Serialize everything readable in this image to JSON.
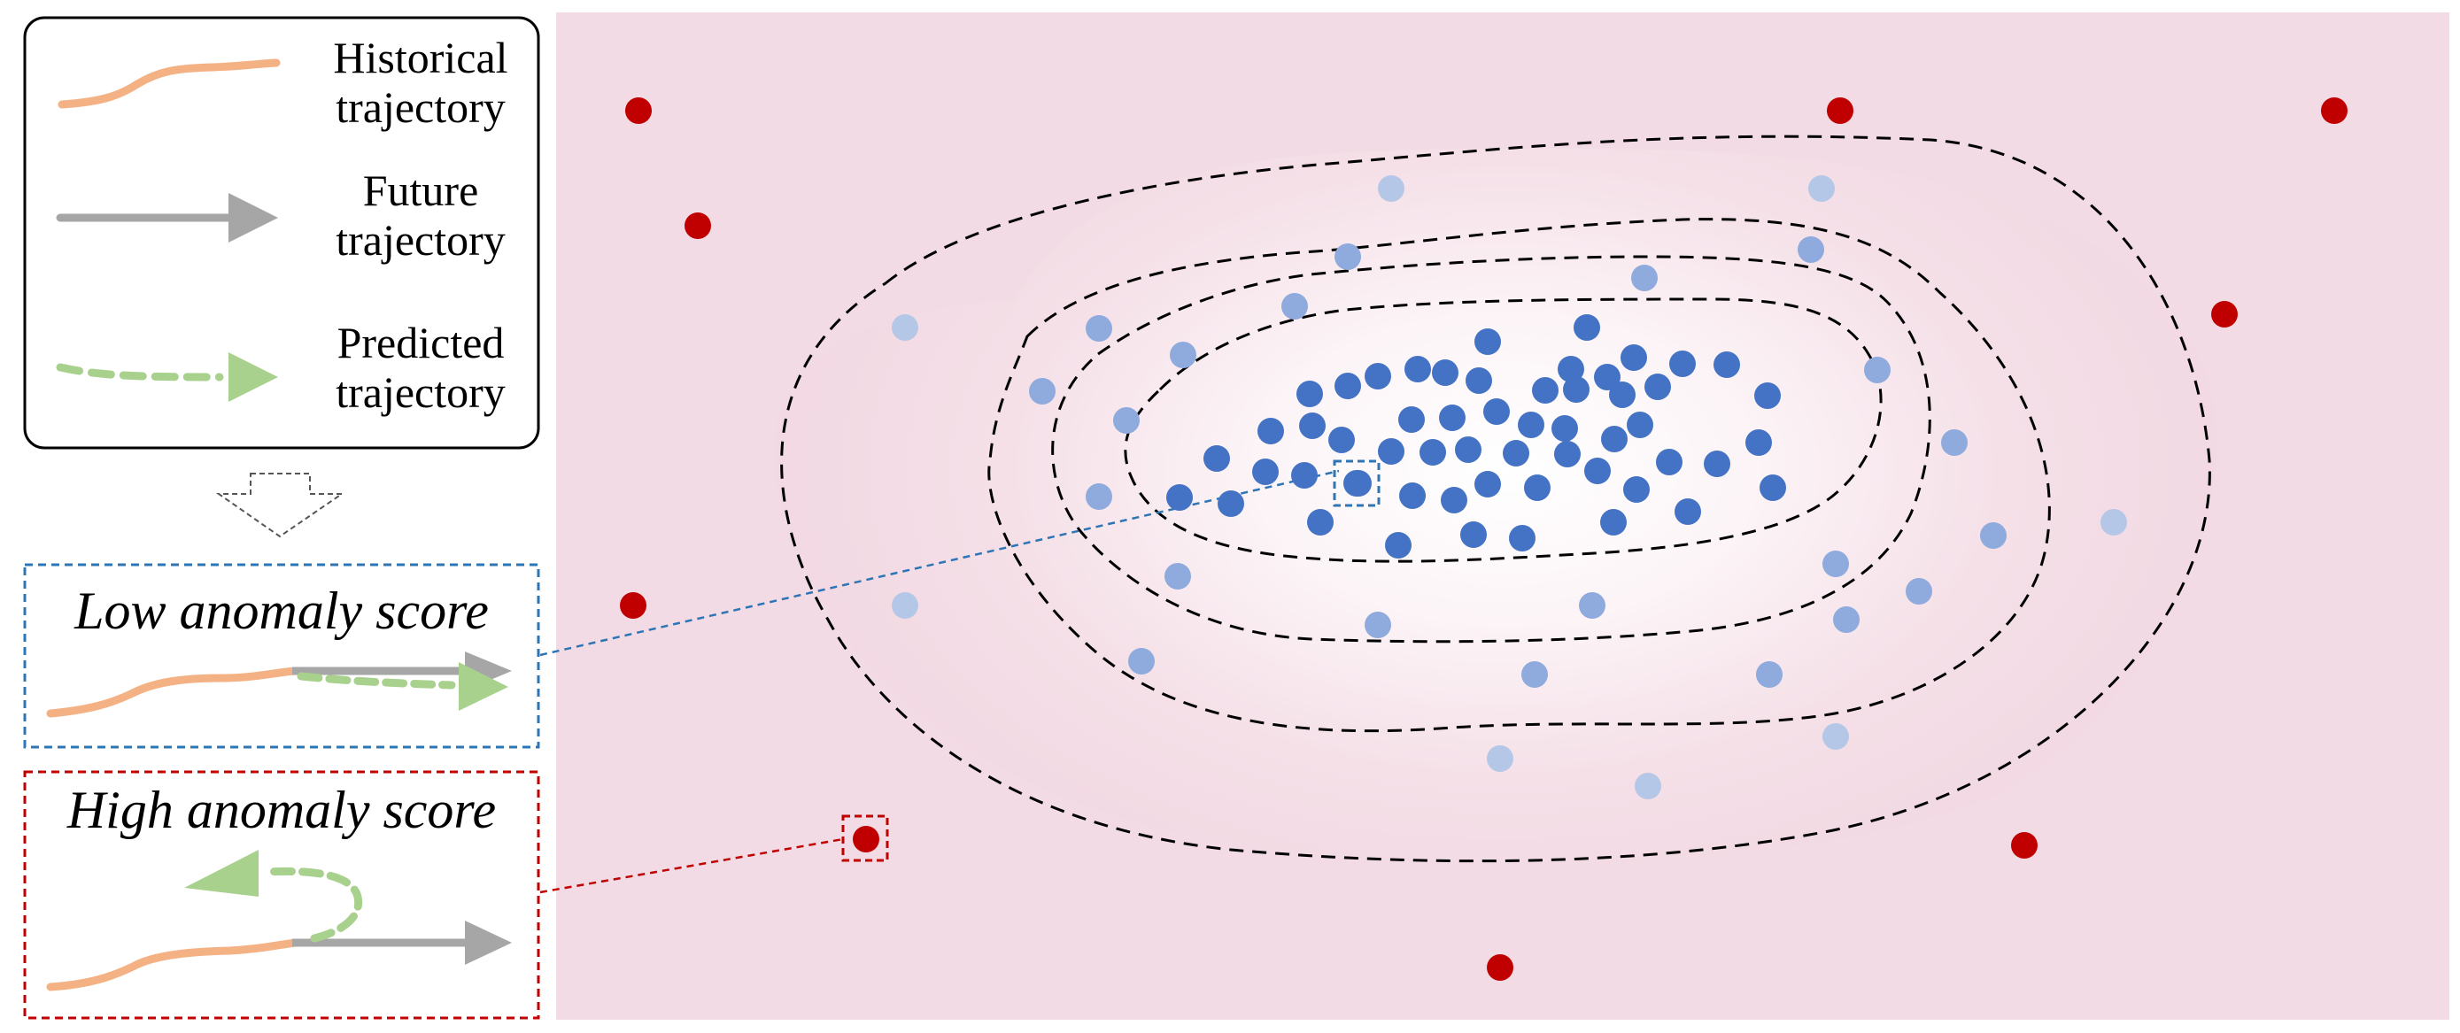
{
  "legend": {
    "historical": [
      "Historical",
      "trajectory"
    ],
    "future": [
      "Future",
      "trajectory"
    ],
    "predicted": [
      "Predicted",
      "trajectory"
    ]
  },
  "scores": {
    "low": "Low anomaly score",
    "high": "High anomaly score"
  },
  "colors": {
    "historical": "#f4b183",
    "future": "#a6a6a6",
    "predicted": "#a9d18e",
    "low_box": "#2e75b6",
    "high_box": "#c00000",
    "background": "#f2dbe4",
    "contour": "#000000",
    "normal_dense": "#4472c4",
    "normal_mid": "#8faadc",
    "normal_sparse": "#b4c7e7",
    "anomaly": "#c00000"
  }
}
